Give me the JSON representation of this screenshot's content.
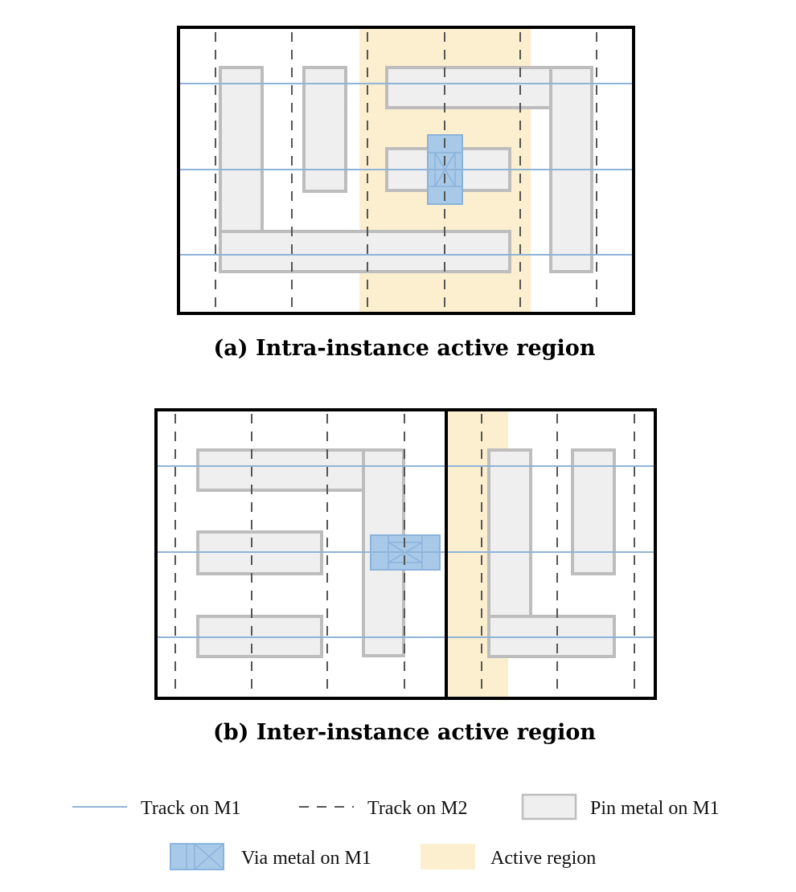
{
  "diagram_a": {
    "caption": "(a) Intra-instance active region"
  },
  "diagram_b": {
    "caption": "(b) Inter-instance active region"
  },
  "legend": {
    "items": [
      {
        "key": "m1_track",
        "label": "Track on M1"
      },
      {
        "key": "m2_track",
        "label": "Track on M2"
      },
      {
        "key": "pin_metal",
        "label": "Pin metal on M1"
      },
      {
        "key": "via_metal",
        "label": "Via metal on M1"
      },
      {
        "key": "active_region",
        "label": "Active region"
      }
    ]
  },
  "colors": {
    "m1_track": "#8fb4d8",
    "m2_track": "#555555",
    "pin_fill": "#efefef",
    "pin_stroke": "#bdbdbd",
    "via_fill": "#a9c9e8",
    "active_region": "#fcefd0"
  }
}
